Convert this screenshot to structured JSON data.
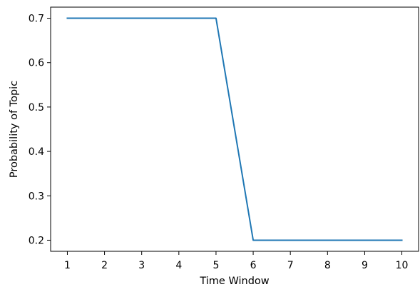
{
  "chart_data": {
    "type": "line",
    "title": "",
    "xlabel": "Time Window",
    "ylabel": "Probability of Topic",
    "x": [
      1,
      2,
      3,
      4,
      5,
      6,
      7,
      8,
      9,
      10
    ],
    "series": [
      {
        "values": [
          0.7,
          0.7,
          0.7,
          0.7,
          0.7,
          0.2,
          0.2,
          0.2,
          0.2,
          0.2
        ],
        "color": "#1f77b4"
      }
    ],
    "xlim": [
      0.55,
      10.45
    ],
    "ylim": [
      0.175,
      0.725
    ],
    "xticks": [
      "1",
      "2",
      "3",
      "4",
      "5",
      "6",
      "7",
      "8",
      "9",
      "10"
    ],
    "yticks": [
      "0.2",
      "0.3",
      "0.4",
      "0.5",
      "0.6",
      "0.7"
    ],
    "grid": false,
    "legend": "none"
  }
}
